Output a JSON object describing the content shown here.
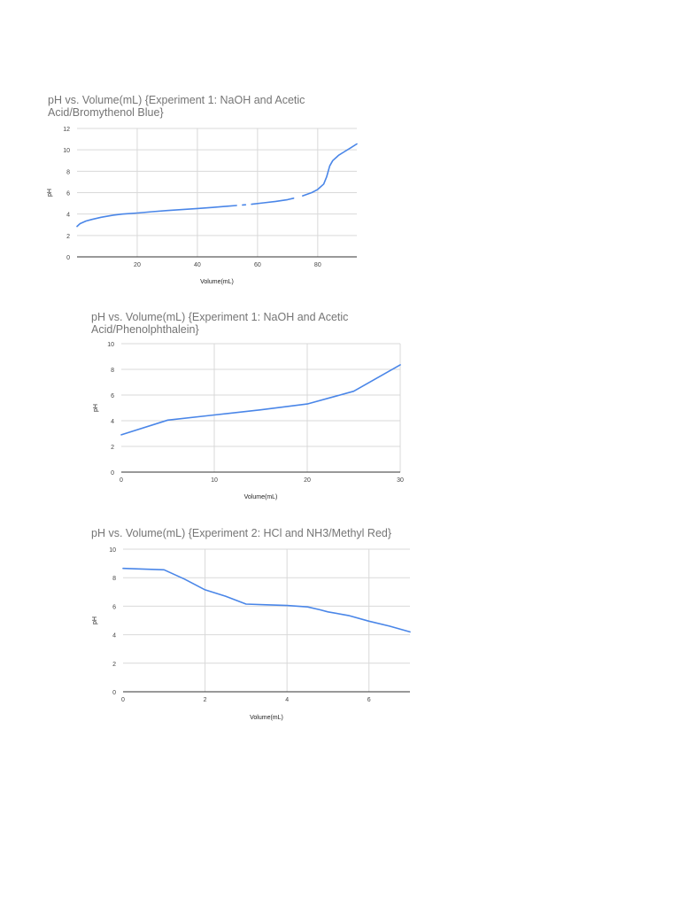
{
  "chart_data": [
    {
      "type": "line",
      "title": "pH vs. Volume(mL)  {Experiment 1: NaOH and Acetic Acid/Bromythenol Blue}",
      "xlabel": "Volume(mL)",
      "ylabel": "pH",
      "xlim": [
        0,
        93
      ],
      "ylim": [
        0,
        12
      ],
      "xticks": [
        20,
        40,
        60,
        80
      ],
      "yticks": [
        0,
        2,
        4,
        6,
        8,
        10,
        12
      ],
      "grid": true,
      "legend": "none",
      "color": "#4a86e8",
      "series": [
        {
          "segments": [
            [
              [
                0,
                2.85
              ],
              [
                1,
                3.1
              ],
              [
                3,
                3.35
              ],
              [
                5,
                3.5
              ],
              [
                8,
                3.7
              ],
              [
                12,
                3.9
              ],
              [
                15,
                4.0
              ],
              [
                20,
                4.1
              ],
              [
                25,
                4.22
              ],
              [
                30,
                4.33
              ],
              [
                35,
                4.42
              ],
              [
                40,
                4.52
              ],
              [
                45,
                4.62
              ],
              [
                50,
                4.73
              ],
              [
                53,
                4.8
              ]
            ],
            [
              [
                55,
                4.85
              ],
              [
                56,
                4.87
              ]
            ],
            [
              [
                58,
                4.92
              ],
              [
                62,
                5.05
              ],
              [
                66,
                5.18
              ],
              [
                70,
                5.35
              ],
              [
                72,
                5.48
              ]
            ],
            [
              [
                75,
                5.7
              ],
              [
                78,
                6.0
              ],
              [
                80,
                6.3
              ],
              [
                82,
                6.8
              ],
              [
                83,
                7.5
              ],
              [
                84,
                8.5
              ],
              [
                85,
                9.0
              ],
              [
                87,
                9.5
              ],
              [
                89,
                9.85
              ],
              [
                91,
                10.2
              ],
              [
                93,
                10.55
              ]
            ]
          ]
        }
      ]
    },
    {
      "type": "line",
      "title": "pH vs. Volume(mL) {Experiment 1: NaOH and Acetic Acid/Phenolphthalein}",
      "xlabel": "Volume(mL)",
      "ylabel": "pH",
      "xlim": [
        0,
        30
      ],
      "ylim": [
        0,
        10
      ],
      "xticks": [
        0,
        10,
        20,
        30
      ],
      "yticks": [
        0,
        2,
        4,
        6,
        8,
        10
      ],
      "grid": true,
      "legend": "none",
      "color": "#4a86e8",
      "series": [
        {
          "segments": [
            [
              [
                0,
                2.9
              ],
              [
                5,
                4.05
              ],
              [
                10,
                4.45
              ],
              [
                15,
                4.85
              ],
              [
                20,
                5.3
              ],
              [
                25,
                6.3
              ],
              [
                30,
                8.35
              ]
            ]
          ]
        }
      ]
    },
    {
      "type": "line",
      "title": "pH vs. Volume(mL) {Experiment 2: HCl and NH3/Methyl Red}",
      "xlabel": "Volume(mL)",
      "ylabel": "pH",
      "xlim": [
        0,
        7
      ],
      "ylim": [
        0,
        10
      ],
      "xticks": [
        0,
        2,
        4,
        6
      ],
      "yticks": [
        0,
        2,
        4,
        6,
        8,
        10
      ],
      "grid": true,
      "legend": "none",
      "color": "#4a86e8",
      "series": [
        {
          "segments": [
            [
              [
                0,
                8.65
              ],
              [
                1,
                8.55
              ],
              [
                1.5,
                7.9
              ],
              [
                2,
                7.15
              ],
              [
                2.5,
                6.7
              ],
              [
                3,
                6.15
              ],
              [
                3.5,
                6.1
              ],
              [
                4,
                6.05
              ],
              [
                4.5,
                5.95
              ],
              [
                4.8,
                5.75
              ],
              [
                5,
                5.6
              ],
              [
                5.5,
                5.35
              ],
              [
                6,
                4.95
              ],
              [
                6.5,
                4.6
              ],
              [
                7,
                4.2
              ]
            ]
          ]
        }
      ]
    }
  ]
}
